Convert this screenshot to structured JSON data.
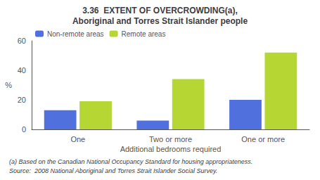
{
  "chart_data": {
    "type": "bar",
    "title": "3.36  EXTENT OF OVERCROWDING(a),",
    "subtitle": "Aboriginal and Torres Strait Islander people",
    "categories": [
      "One",
      "Two or more",
      "One or more"
    ],
    "series": [
      {
        "name": "Non-remote areas",
        "values": [
          13,
          6,
          20
        ]
      },
      {
        "name": "Remote areas",
        "values": [
          19,
          34,
          52
        ]
      }
    ],
    "xlabel": "Additional bedrooms required",
    "ylabel": "%",
    "ylim": [
      0,
      60
    ],
    "yticks": [
      0,
      20,
      40,
      60
    ],
    "grid": false,
    "legend": "upper left",
    "annotations": [
      "(a) Based on the Canadian National Occupancy Standard for housing appropriateness.",
      "Source:  2008 National Aboriginal and Torres Strait Islander Social Survey."
    ]
  }
}
